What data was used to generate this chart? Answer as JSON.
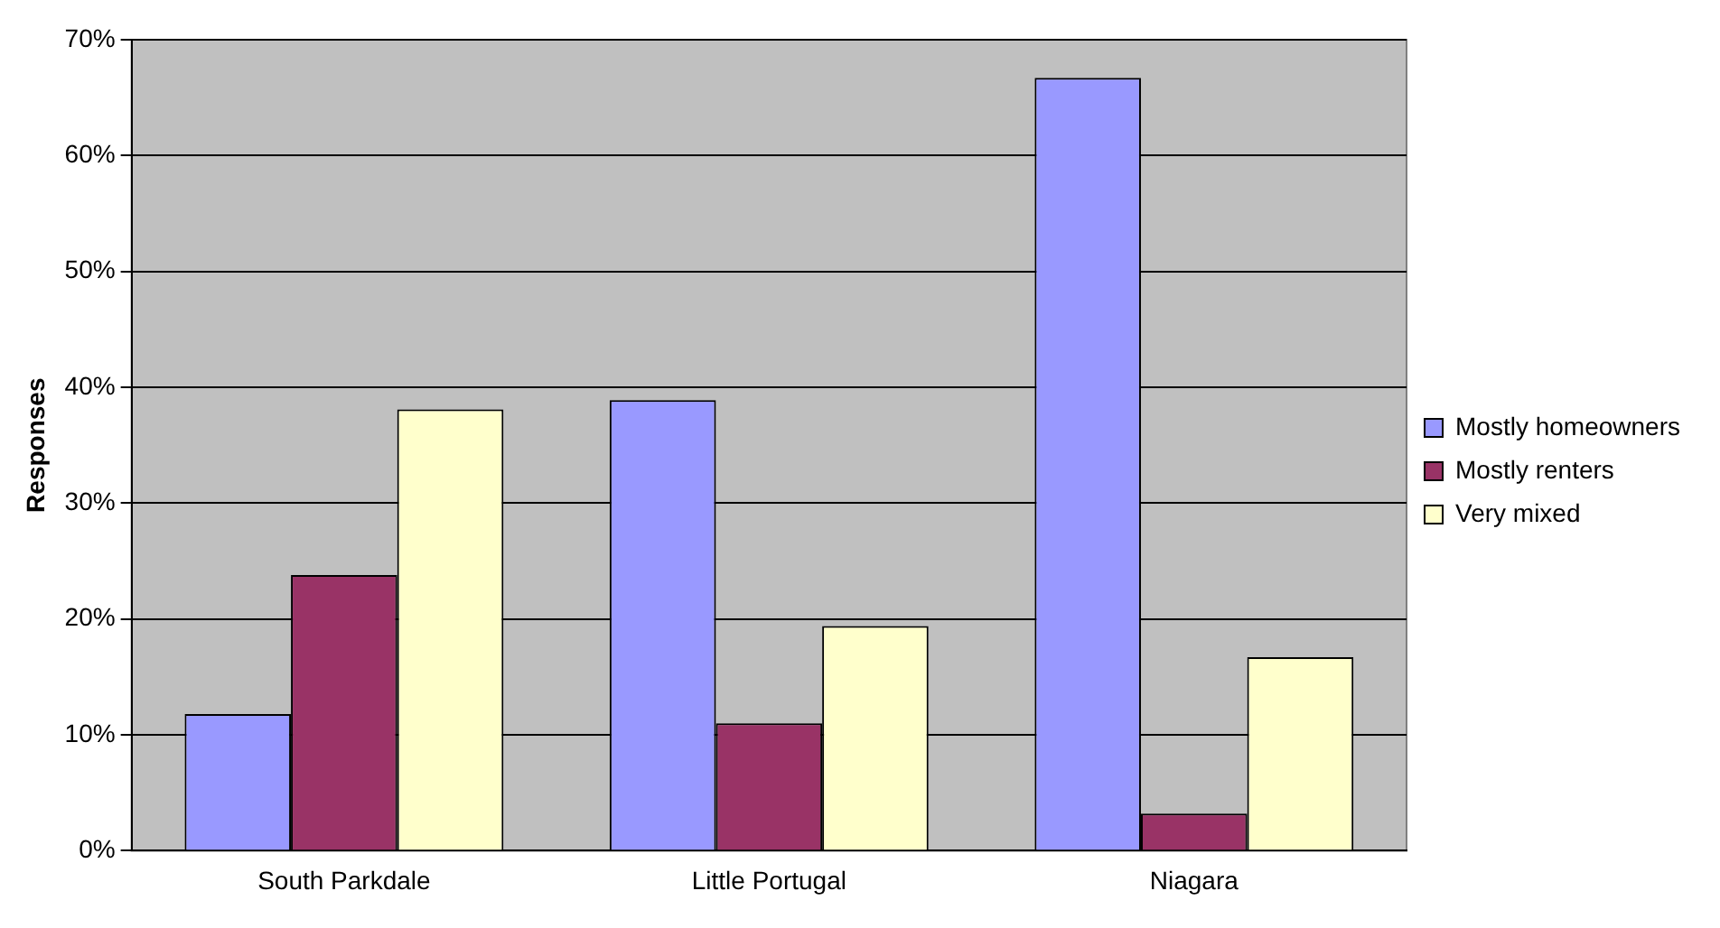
{
  "chart_data": {
    "type": "bar",
    "ylabel": "Responses",
    "categories": [
      "South Parkdale",
      "Little Portugal",
      "Niagara"
    ],
    "series": [
      {
        "name": "Mostly homeowners",
        "color": "#9999ff",
        "values": [
          11.8,
          38.9,
          66.7
        ]
      },
      {
        "name": "Mostly renters",
        "color": "#993366",
        "values": [
          23.8,
          11.0,
          3.2
        ]
      },
      {
        "name": "Very mixed",
        "color": "#ffffcc",
        "values": [
          38.1,
          19.4,
          16.7
        ]
      }
    ],
    "ylim": [
      0,
      70
    ],
    "yticks": [
      {
        "value": 0,
        "label": "0%"
      },
      {
        "value": 10,
        "label": "10%"
      },
      {
        "value": 20,
        "label": "20%"
      },
      {
        "value": 30,
        "label": "30%"
      },
      {
        "value": 40,
        "label": "40%"
      },
      {
        "value": 50,
        "label": "50%"
      },
      {
        "value": 60,
        "label": "60%"
      },
      {
        "value": 70,
        "label": "70%"
      }
    ],
    "grid": "y",
    "legend": "right"
  }
}
